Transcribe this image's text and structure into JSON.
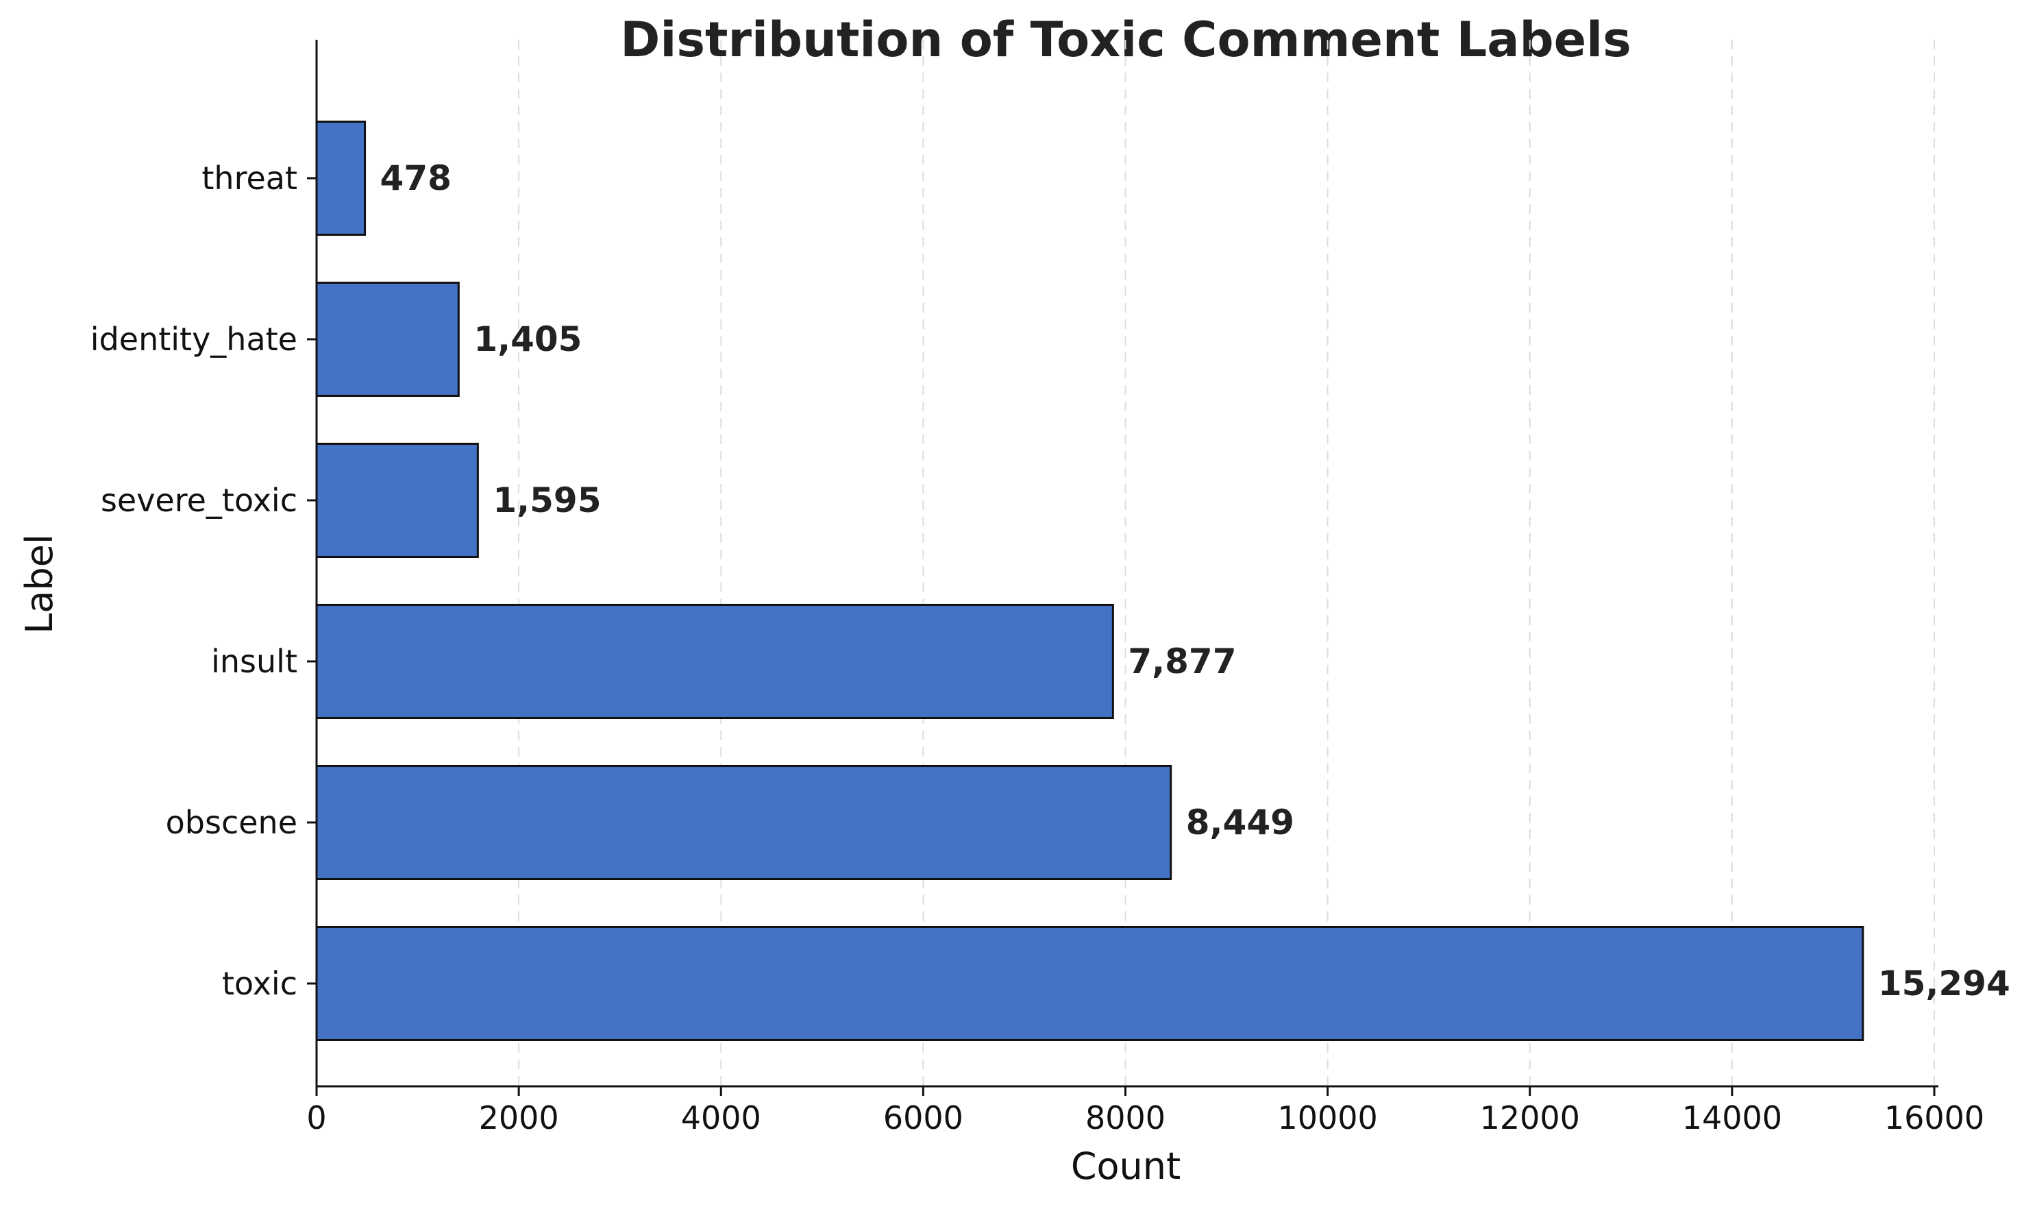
{
  "chart_data": {
    "type": "bar",
    "orientation": "horizontal",
    "title": "Distribution of Toxic Comment Labels",
    "xlabel": "Count",
    "ylabel": "Label",
    "categories": [
      "threat",
      "identity_hate",
      "severe_toxic",
      "insult",
      "obscene",
      "toxic"
    ],
    "values": [
      478,
      1405,
      1595,
      7877,
      8449,
      15294
    ],
    "value_labels": [
      "478",
      "1,405",
      "1,595",
      "7,877",
      "8,449",
      "15,294"
    ],
    "xlim": [
      0,
      16000
    ],
    "x_ticks": [
      0,
      2000,
      4000,
      6000,
      8000,
      10000,
      12000,
      14000,
      16000
    ],
    "x_tick_labels": [
      "0",
      "2000",
      "4000",
      "6000",
      "8000",
      "10000",
      "12000",
      "14000",
      "16000"
    ],
    "grid": "x-axis dashed",
    "legend": "none",
    "colors": {
      "bar_fill": "#4472c4",
      "bar_edge": "#111111",
      "grid": "#dddddd",
      "axis": "#111111"
    }
  }
}
